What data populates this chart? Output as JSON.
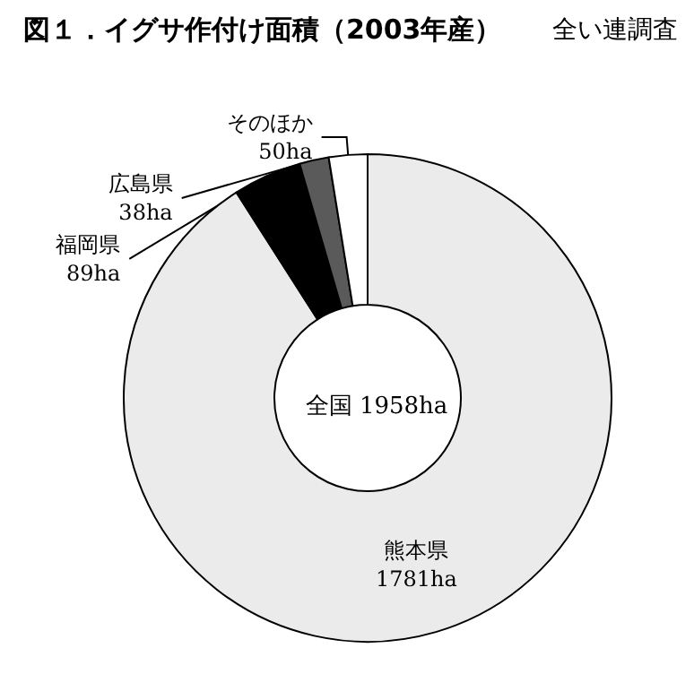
{
  "chart_data": {
    "type": "donut",
    "title": "図１．イグサ作付け面積（2003年産）",
    "annotations": [
      "全い連調査",
      "全国 1958ha"
    ],
    "categories": [
      "熊本県",
      "福岡県",
      "広島県",
      "そのほか"
    ],
    "values": [
      1781,
      89,
      38,
      50
    ],
    "value_labels": [
      "1781ha",
      "89ha",
      "38ha",
      "50ha"
    ],
    "colors": [
      "#ebebeb",
      "#000000",
      "#5a5a5a",
      "#ffffff"
    ],
    "legend": false
  }
}
